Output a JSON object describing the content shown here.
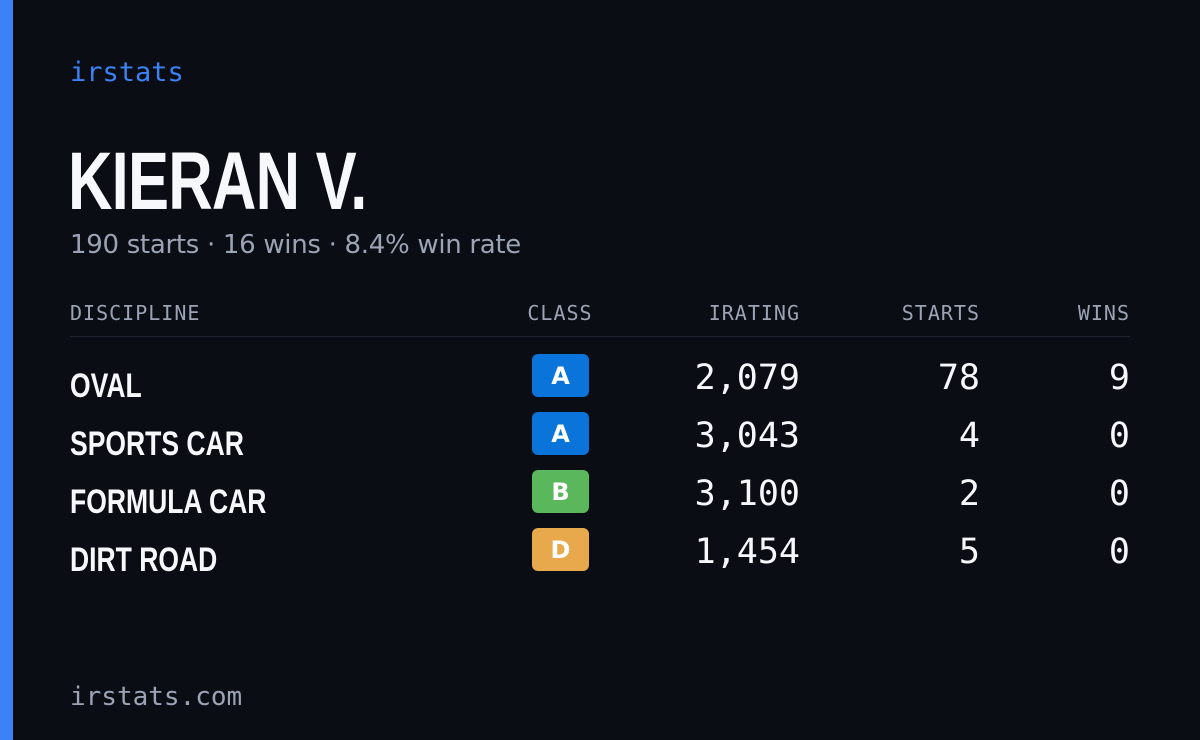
{
  "theme": {
    "accent": "#3b82f6",
    "background": "#0a0d14",
    "text_primary": "#f7f8fb",
    "text_muted": "#9ca3b4",
    "class_colors": {
      "A": "#0a74da",
      "B": "#5bb75b",
      "D": "#e8a94c"
    }
  },
  "brand": "irstats",
  "driver": {
    "name": "KIERAN V.",
    "summary": "190 starts · 16 wins · 8.4% win rate"
  },
  "table": {
    "headers": {
      "discipline": "DISCIPLINE",
      "class": "CLASS",
      "irating": "IRATING",
      "starts": "STARTS",
      "wins": "WINS"
    },
    "rows": [
      {
        "discipline": "OVAL",
        "class": "A",
        "irating": "2,079",
        "starts": "78",
        "wins": "9"
      },
      {
        "discipline": "SPORTS CAR",
        "class": "A",
        "irating": "3,043",
        "starts": "4",
        "wins": "0"
      },
      {
        "discipline": "FORMULA CAR",
        "class": "B",
        "irating": "3,100",
        "starts": "2",
        "wins": "0"
      },
      {
        "discipline": "DIRT ROAD",
        "class": "D",
        "irating": "1,454",
        "starts": "5",
        "wins": "0"
      }
    ]
  },
  "footer": {
    "url": "irstats.com"
  }
}
